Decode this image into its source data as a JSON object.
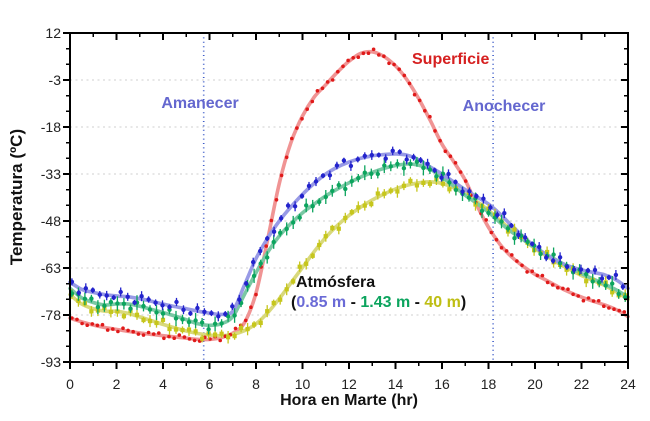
{
  "figure": {
    "y_axis_title": "Temperatura (ºC)",
    "x_axis_title": "Hora en Marte (hr)"
  },
  "annotations": {
    "amanecer": {
      "text": "Amanecer",
      "hr": 5.75,
      "color": "#6467cf"
    },
    "anochecer": {
      "text": "Anochecer",
      "hr": 18.2,
      "color": "#6467cf"
    },
    "superficie_label": {
      "text": "Superficie",
      "color": "#d62020"
    },
    "atmosfera_title": {
      "text": "Atmósfera",
      "color": "#111111"
    },
    "legend": {
      "prefix": "(",
      "separator": " - ",
      "suffix": ")",
      "items": [
        {
          "label": "0.85 m",
          "color": "#6a6ad6"
        },
        {
          "label": "1.43 m",
          "color": "#0ca45e"
        },
        {
          "label": "40 m",
          "color": "#bebe14"
        }
      ]
    }
  },
  "chart_data": {
    "type": "scatter+line",
    "title": "",
    "xlabel": "Hora en Marte (hr)",
    "ylabel": "Temperatura (ºC)",
    "x_axis": {
      "min": 0,
      "max": 24,
      "major_tick_step": 2,
      "minor_tick_step": 1,
      "tick_labels": [
        0,
        2,
        4,
        6,
        8,
        10,
        12,
        14,
        16,
        18,
        20,
        22,
        24
      ]
    },
    "y_axis": {
      "min": -93,
      "max": 12,
      "major_tick_step": 15,
      "minor_tick_step": 5,
      "tick_labels": [
        12,
        -3,
        -18,
        -33,
        -48,
        -63,
        -78,
        -93
      ],
      "gridlines": [
        -3,
        -18,
        -33,
        -48,
        -63,
        -78
      ]
    },
    "grid": "horizontal-dashed",
    "event_lines": [
      {
        "label": "Amanecer",
        "hr": 5.75,
        "color": "#3c5bc8"
      },
      {
        "label": "Anochecer",
        "hr": 18.2,
        "color": "#3c5bc8"
      }
    ],
    "series": [
      {
        "id": "superficie",
        "name": "Superficie",
        "marker": "circle",
        "marker_size": 1.8,
        "point_color": "#e01a1a",
        "line_color": "#f09494",
        "error_bar_halfwidth_deg": 0,
        "scatter_step_hr": 0.22,
        "scatter_jitter_deg": 1.0,
        "jitter_seed": 1.3,
        "curve_hr_degC": [
          [
            0,
            -79
          ],
          [
            0.5,
            -80.2
          ],
          [
            1,
            -81.2
          ],
          [
            1.5,
            -82
          ],
          [
            2,
            -82.6
          ],
          [
            2.5,
            -83.2
          ],
          [
            3,
            -83.7
          ],
          [
            3.5,
            -84.2
          ],
          [
            4,
            -84.6
          ],
          [
            4.5,
            -85
          ],
          [
            5,
            -85.4
          ],
          [
            5.5,
            -85.8
          ],
          [
            6,
            -85.8
          ],
          [
            6.5,
            -85.2
          ],
          [
            7,
            -83.8
          ],
          [
            7.5,
            -80.5
          ],
          [
            8,
            -71
          ],
          [
            8.5,
            -54
          ],
          [
            9,
            -36
          ],
          [
            9.5,
            -23
          ],
          [
            10,
            -14.5
          ],
          [
            10.5,
            -8.5
          ],
          [
            11,
            -4.5
          ],
          [
            11.5,
            -0.5
          ],
          [
            12,
            3
          ],
          [
            12.5,
            5.5
          ],
          [
            13,
            6
          ],
          [
            13.5,
            4.5
          ],
          [
            14,
            1.5
          ],
          [
            14.5,
            -3
          ],
          [
            15,
            -9
          ],
          [
            15.5,
            -16
          ],
          [
            16,
            -23.5
          ],
          [
            16.5,
            -29
          ],
          [
            17,
            -35
          ],
          [
            17.5,
            -43
          ],
          [
            18,
            -50
          ],
          [
            18.5,
            -55.5
          ],
          [
            19,
            -59.5
          ],
          [
            19.5,
            -62.5
          ],
          [
            20,
            -65
          ],
          [
            20.5,
            -67
          ],
          [
            21,
            -69
          ],
          [
            21.5,
            -70.8
          ],
          [
            22,
            -72.3
          ],
          [
            22.5,
            -73.6
          ],
          [
            23,
            -74.8
          ],
          [
            23.5,
            -76.3
          ],
          [
            24,
            -78.5
          ]
        ]
      },
      {
        "id": "atm-40m",
        "name": "Atmósfera 40 m",
        "marker": "square",
        "marker_size": 2.1,
        "point_color": "#c6c61c",
        "line_color": "#d9d97c",
        "error_bar_halfwidth_deg": 2.0,
        "scatter_step_hr": 0.28,
        "scatter_jitter_deg": 1.5,
        "jitter_seed": 5.9,
        "curve_hr_degC": [
          [
            0,
            -71.5
          ],
          [
            0.5,
            -74.5
          ],
          [
            1,
            -76
          ],
          [
            1.5,
            -76.8
          ],
          [
            2,
            -76.8
          ],
          [
            2.5,
            -77.5
          ],
          [
            3,
            -78.6
          ],
          [
            3.5,
            -79.8
          ],
          [
            4,
            -81
          ],
          [
            4.5,
            -82.1
          ],
          [
            5,
            -83.1
          ],
          [
            5.5,
            -83.9
          ],
          [
            6,
            -84.4
          ],
          [
            6.5,
            -84.6
          ],
          [
            7,
            -84.2
          ],
          [
            7.5,
            -83
          ],
          [
            8,
            -80.8
          ],
          [
            8.5,
            -77.3
          ],
          [
            9,
            -72.8
          ],
          [
            9.5,
            -67.8
          ],
          [
            10,
            -62.8
          ],
          [
            10.5,
            -57.8
          ],
          [
            11,
            -53.2
          ],
          [
            11.5,
            -49.4
          ],
          [
            12,
            -46.2
          ],
          [
            12.5,
            -43.6
          ],
          [
            13,
            -41.3
          ],
          [
            13.5,
            -39.4
          ],
          [
            14,
            -37.8
          ],
          [
            14.5,
            -36.6
          ],
          [
            15,
            -35.8
          ],
          [
            15.5,
            -35.5
          ],
          [
            16,
            -36
          ],
          [
            16.5,
            -37.4
          ],
          [
            17,
            -39.4
          ],
          [
            17.5,
            -41.8
          ],
          [
            18,
            -44.6
          ],
          [
            18.5,
            -47.8
          ],
          [
            19,
            -51
          ],
          [
            19.5,
            -54
          ],
          [
            20,
            -56.8
          ],
          [
            20.5,
            -59.2
          ],
          [
            21,
            -61.5
          ],
          [
            21.5,
            -63.5
          ],
          [
            22,
            -65.4
          ],
          [
            22.5,
            -67
          ],
          [
            23,
            -68.6
          ],
          [
            23.5,
            -70.6
          ],
          [
            24,
            -73
          ]
        ]
      },
      {
        "id": "atm-1_43m",
        "name": "Atmósfera 1.43 m",
        "marker": "circle",
        "marker_size": 2.2,
        "point_color": "#0ca45e",
        "line_color": "#7ac8a4",
        "error_bar_halfwidth_deg": 2.4,
        "scatter_step_hr": 0.28,
        "scatter_jitter_deg": 1.5,
        "jitter_seed": 4.1,
        "curve_hr_degC": [
          [
            0,
            -69.5
          ],
          [
            0.5,
            -72.5
          ],
          [
            1,
            -74
          ],
          [
            1.5,
            -74.8
          ],
          [
            2,
            -74.5
          ],
          [
            2.5,
            -74.5
          ],
          [
            3,
            -75.2
          ],
          [
            3.5,
            -76.2
          ],
          [
            4,
            -77.2
          ],
          [
            4.5,
            -78.3
          ],
          [
            5,
            -79.5
          ],
          [
            5.5,
            -80.8
          ],
          [
            6,
            -81.3
          ],
          [
            6.5,
            -80.8
          ],
          [
            7,
            -78.5
          ],
          [
            7.5,
            -71.5
          ],
          [
            8,
            -64.5
          ],
          [
            8.5,
            -58
          ],
          [
            9,
            -52.8
          ],
          [
            9.5,
            -48.8
          ],
          [
            10,
            -45.4
          ],
          [
            10.5,
            -42.6
          ],
          [
            11,
            -40
          ],
          [
            11.5,
            -37.8
          ],
          [
            12,
            -35.8
          ],
          [
            12.5,
            -34
          ],
          [
            13,
            -32.5
          ],
          [
            13.5,
            -31.2
          ],
          [
            14,
            -30.3
          ],
          [
            14.5,
            -29.8
          ],
          [
            15,
            -30.2
          ],
          [
            15.5,
            -31.5
          ],
          [
            16,
            -34
          ],
          [
            16.5,
            -36.8
          ],
          [
            17,
            -39.8
          ],
          [
            17.5,
            -42.4
          ],
          [
            18,
            -45.2
          ],
          [
            18.5,
            -48.5
          ],
          [
            19,
            -51.5
          ],
          [
            19.5,
            -54
          ],
          [
            20,
            -56.5
          ],
          [
            20.5,
            -58.7
          ],
          [
            21,
            -60.8
          ],
          [
            21.5,
            -62.8
          ],
          [
            22,
            -64.8
          ],
          [
            22.5,
            -66.5
          ],
          [
            23,
            -68.2
          ],
          [
            23.5,
            -70
          ],
          [
            24,
            -72.3
          ]
        ]
      },
      {
        "id": "atm-0_85m",
        "name": "Atmósfera 0.85 m",
        "marker": "circle",
        "marker_size": 2.2,
        "point_color": "#2323cc",
        "line_color": "#989ae6",
        "error_bar_halfwidth_deg": 1.6,
        "scatter_step_hr": 0.3,
        "scatter_jitter_deg": 1.7,
        "jitter_seed": 2.7,
        "curve_hr_degC": [
          [
            0,
            -67.5
          ],
          [
            0.5,
            -69.8
          ],
          [
            1,
            -70.8
          ],
          [
            1.5,
            -71.5
          ],
          [
            2,
            -71.9
          ],
          [
            2.5,
            -72.2
          ],
          [
            3,
            -72.8
          ],
          [
            3.5,
            -73.6
          ],
          [
            4,
            -74.5
          ],
          [
            4.5,
            -75.3
          ],
          [
            5,
            -76
          ],
          [
            5.5,
            -76.8
          ],
          [
            6,
            -77.4
          ],
          [
            6.5,
            -77.8
          ],
          [
            7,
            -76.8
          ],
          [
            7.5,
            -68.5
          ],
          [
            8,
            -60
          ],
          [
            8.5,
            -53.5
          ],
          [
            9,
            -48
          ],
          [
            9.5,
            -43.5
          ],
          [
            10,
            -39.5
          ],
          [
            10.5,
            -36
          ],
          [
            11,
            -33
          ],
          [
            11.5,
            -30.8
          ],
          [
            12,
            -29.2
          ],
          [
            12.5,
            -28
          ],
          [
            13,
            -27.2
          ],
          [
            13.5,
            -26.8
          ],
          [
            14,
            -26.6
          ],
          [
            14.5,
            -27
          ],
          [
            15,
            -28.5
          ],
          [
            15.5,
            -30.8
          ],
          [
            16,
            -33
          ],
          [
            16.5,
            -35.5
          ],
          [
            17,
            -38
          ],
          [
            17.5,
            -40.3
          ],
          [
            18,
            -42.6
          ],
          [
            18.5,
            -45.8
          ],
          [
            19,
            -49.5
          ],
          [
            19.5,
            -53
          ],
          [
            20,
            -56.2
          ],
          [
            20.5,
            -58.8
          ],
          [
            21,
            -61
          ],
          [
            21.5,
            -62.5
          ],
          [
            22,
            -63.6
          ],
          [
            22.5,
            -64.4
          ],
          [
            23,
            -65.2
          ],
          [
            23.5,
            -66.8
          ],
          [
            24,
            -69.5
          ]
        ]
      }
    ]
  }
}
